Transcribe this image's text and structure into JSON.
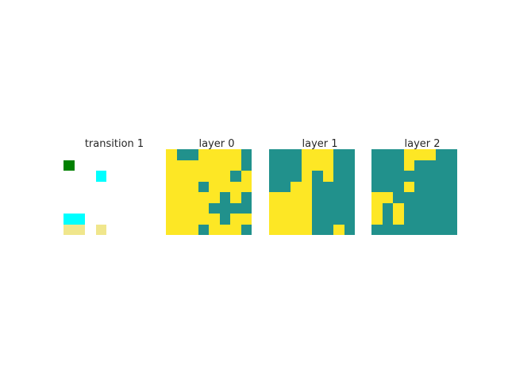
{
  "colors": {
    "w": "#ffffff",
    "y": "#fde725",
    "t": "#21918c",
    "g": "#008000",
    "c": "#00ffff",
    "k": "#f0e68c"
  },
  "panels": [
    {
      "title": "transition 1",
      "grid": [
        "wwwwwwww",
        "gwwwwwww",
        "wwwcwwww",
        "wwwwwwww",
        "wwwwwwww",
        "wwwwwwww",
        "ccwwwwww",
        "kkwkwwww"
      ]
    },
    {
      "title": "layer 0",
      "grid": [
        "yttyyyyt",
        "yyyyyyyt",
        "yyyyyyty",
        "yyytyyyy",
        "yyyyytyt",
        "yyyytttt",
        "yyyyytyy",
        "yyytyyyt"
      ]
    },
    {
      "title": "layer 1",
      "grid": [
        "tttyyytt",
        "tttyyytt",
        "tttytytt",
        "ttyytttt",
        "yyyytttt",
        "yyyytttt",
        "yyyytttt",
        "yyyyttyt"
      ]
    },
    {
      "title": "layer 2",
      "grid": [
        "tttyyytt",
        "tttytttt",
        "tttttttt",
        "tttytttt",
        "yytttttt",
        "ytyttttt",
        "ytyttttt",
        "tttttttt"
      ]
    }
  ]
}
